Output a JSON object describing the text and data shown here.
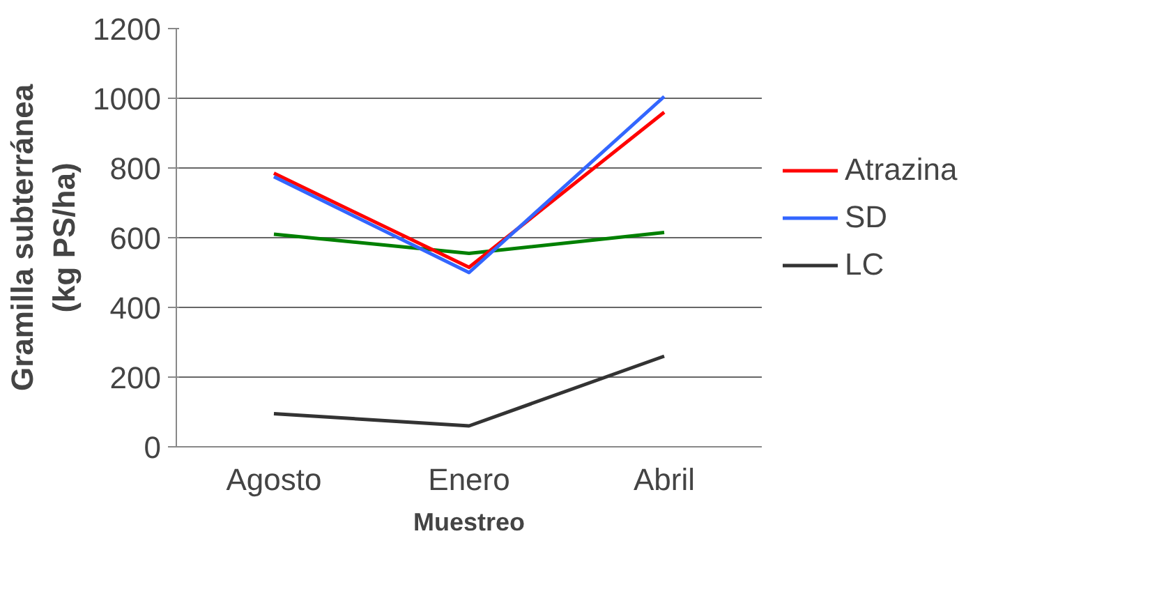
{
  "chart_data": {
    "type": "line",
    "xlabel": "Muestreo",
    "ylabel": "Gramilla subterránea\n(kg PS/ha)",
    "categories": [
      "Agosto",
      "Enero",
      "Abril"
    ],
    "series": [
      {
        "color": "#008000",
        "values": [
          610,
          555,
          615
        ]
      },
      {
        "name": "Atrazina",
        "color": "#ff0000",
        "values": [
          785,
          515,
          960
        ]
      },
      {
        "name": "SD",
        "color": "#3366ff",
        "values": [
          775,
          500,
          1005
        ]
      },
      {
        "name": "LC",
        "color": "#333333",
        "values": [
          95,
          60,
          260
        ]
      }
    ],
    "ylim": [
      0,
      1200
    ],
    "yticks": [
      0,
      200,
      400,
      600,
      800,
      1000,
      1200
    ],
    "grid": "y",
    "legend": "right",
    "marker": "none",
    "line_style": "solid"
  }
}
